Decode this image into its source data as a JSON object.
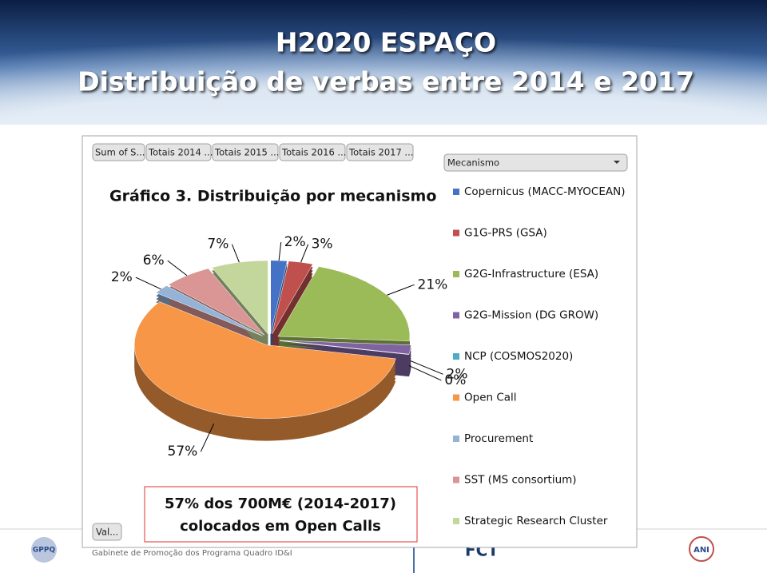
{
  "header": {
    "title": "H2020 ESPAÇO",
    "subtitle": "Distribuição de verbas entre 2014 e 2017"
  },
  "pivot_fields": [
    "Sum of S...",
    "Totais 2014 ...",
    "Totais 2015 ...",
    "Totais 2016 ...",
    "Totais 2017 ..."
  ],
  "filter_field": "Mecanismo",
  "value_field": "Val...",
  "chart_data": {
    "type": "pie",
    "title": "Gráfico 3. Distribuição por mecanismo",
    "categories": [
      "Copernicus (MACC-MYOCEAN)",
      "G1G-PRS (GSA)",
      "G2G-Infrastructure (ESA)",
      "G2G-Mission (DG GROW)",
      "NCP (COSMOS2020)",
      "Open Call",
      "Procurement",
      "SST (MS consortium)",
      "Strategic Research Cluster"
    ],
    "values": [
      2,
      3,
      21,
      2,
      0,
      57,
      2,
      6,
      7
    ],
    "value_labels": [
      "2%",
      "3%",
      "21%",
      "2%",
      "0%",
      "57%",
      "2%",
      "6%",
      "7%"
    ],
    "colors": [
      "#4472c4",
      "#c0504d",
      "#9bbb59",
      "#8064a2",
      "#4bacc6",
      "#f79646",
      "#95b3d7",
      "#d99694",
      "#c3d69b"
    ]
  },
  "annotation": {
    "line1": "57% dos 700M€ (2014-2017)",
    "line2": "colocados em Open Calls"
  },
  "footer": {
    "text": "Gabinete de Promoção dos Programa Quadro ID&I",
    "logos": [
      "GPPQ",
      "FCT",
      "ANI"
    ]
  }
}
